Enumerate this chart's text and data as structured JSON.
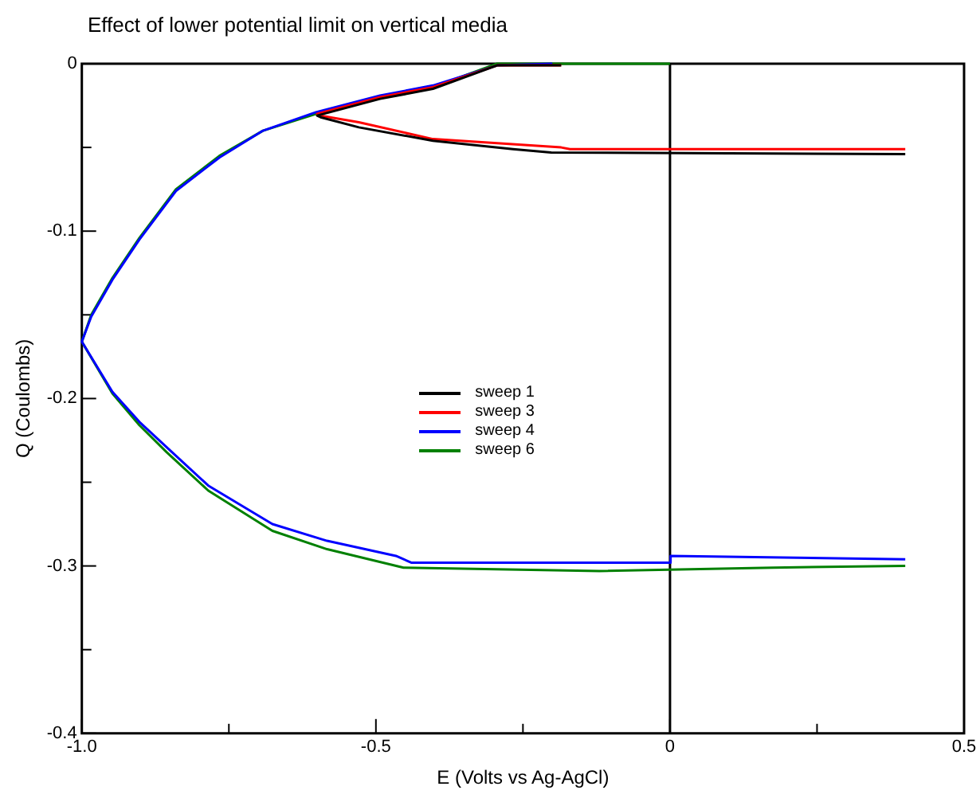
{
  "chart_data": {
    "type": "line",
    "title": "Effect of lower potential limit on vertical media",
    "xlabel": "E (Volts vs Ag-AgCl)",
    "ylabel": "Q (Coulombs)",
    "xlim": [
      -1.0,
      0.5
    ],
    "xticks": [
      {
        "value": -1.0,
        "label": "-1.0"
      },
      {
        "value": -0.75,
        "label": null
      },
      -0.5,
      {
        "value": -0.25,
        "label": null
      },
      0,
      {
        "value": 0.25,
        "label": null
      },
      0.5
    ],
    "ylim": [
      -0.4,
      0
    ],
    "yticks": [
      -0.4,
      {
        "value": -0.35,
        "label": null
      },
      -0.3,
      {
        "value": -0.25,
        "label": null
      },
      -0.2,
      {
        "value": -0.15,
        "label": null
      },
      -0.1,
      {
        "value": -0.05,
        "label": null
      },
      0
    ],
    "grid": false,
    "legend": "center",
    "marker": "none",
    "line_style": "solid",
    "ref_lines": [
      {
        "axis": "x",
        "value": 0,
        "color": "#000000"
      }
    ],
    "series": [
      {
        "name": "sweep 1",
        "color": "#000000",
        "x": [
          -0.185,
          -0.294,
          -0.403,
          -0.493,
          -0.6,
          -0.594,
          -0.529,
          -0.403,
          -0.267,
          -0.202,
          0.4
        ],
        "values": [
          -0.001,
          -0.001,
          -0.015,
          -0.021,
          -0.031,
          -0.032,
          -0.038,
          -0.046,
          -0.051,
          -0.053,
          -0.054
        ]
      },
      {
        "name": "sweep 3",
        "color": "#ff0000",
        "x": [
          -0.185,
          -0.294,
          -0.403,
          -0.493,
          -0.6,
          -0.594,
          -0.529,
          -0.403,
          -0.185,
          -0.17,
          0.4
        ],
        "values": [
          -0.001,
          -0.001,
          -0.014,
          -0.02,
          -0.03,
          -0.031,
          -0.035,
          -0.045,
          -0.05,
          -0.051,
          -0.051
        ]
      },
      {
        "name": "sweep 4",
        "color": "#0000ff",
        "x": [
          -0.2,
          -0.294,
          -0.403,
          -0.493,
          -0.602,
          -0.692,
          -0.766,
          -0.84,
          -0.902,
          -0.948,
          -0.984,
          -1.0,
          -0.948,
          -0.902,
          -0.856,
          -0.785,
          -0.676,
          -0.583,
          -0.466,
          -0.44,
          0,
          0.001,
          0.4
        ],
        "values": [
          0,
          -0.001,
          -0.013,
          -0.019,
          -0.029,
          -0.04,
          -0.056,
          -0.076,
          -0.105,
          -0.129,
          -0.151,
          -0.166,
          -0.196,
          -0.214,
          -0.229,
          -0.252,
          -0.275,
          -0.285,
          -0.294,
          -0.298,
          -0.298,
          -0.294,
          -0.296
        ]
      },
      {
        "name": "sweep 6",
        "color": "#008000",
        "x": [
          0,
          -0.294,
          -0.403,
          -0.493,
          -0.602,
          -0.692,
          -0.766,
          -0.84,
          -0.902,
          -0.948,
          -0.984,
          -1.0,
          -0.948,
          -0.902,
          -0.856,
          -0.785,
          -0.676,
          -0.583,
          -0.453,
          -0.12,
          0.175,
          0.4
        ],
        "values": [
          0,
          0,
          -0.014,
          -0.02,
          -0.03,
          -0.04,
          -0.055,
          -0.075,
          -0.104,
          -0.128,
          -0.15,
          -0.166,
          -0.197,
          -0.216,
          -0.232,
          -0.255,
          -0.279,
          -0.29,
          -0.301,
          -0.303,
          -0.301,
          -0.3
        ]
      }
    ]
  }
}
